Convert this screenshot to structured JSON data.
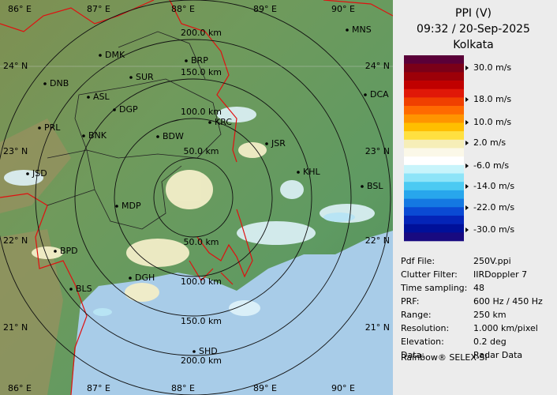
{
  "header": {
    "title": "PPI (V)",
    "datetime": "09:32 / 20-Sep-2025",
    "site": "Kolkata"
  },
  "legend": {
    "labels": [
      "30.0 m/s",
      "18.0 m/s",
      "10.0 m/s",
      "2.0 m/s",
      "-6.0 m/s",
      "-14.0 m/s",
      "-22.0 m/s",
      "-30.0 m/s"
    ]
  },
  "info": {
    "rows": [
      [
        "Pdf File:",
        "250V.ppi"
      ],
      [
        "Clutter Filter:",
        "IIRDoppler 7"
      ],
      [
        "Time sampling:",
        "48"
      ],
      [
        "PRF:",
        "600 Hz / 450 Hz"
      ],
      [
        "Range:",
        "250 km"
      ],
      [
        "Resolution:",
        "1.000 km/pixel"
      ],
      [
        "Elevation:",
        "0.2 deg"
      ],
      [
        "Data:",
        "Radar Data"
      ]
    ]
  },
  "footer": "Rainbow® SELEX-SI",
  "map": {
    "lon_labels": [
      "86° E",
      "87° E",
      "88° E",
      "89° E",
      "90° E"
    ],
    "lat_labels": [
      "24° N",
      "23° N",
      "22° N",
      "21° N"
    ],
    "range_labels_north": [
      "200.0 km",
      "150.0 km",
      "100.0 km",
      "50.0 km"
    ],
    "range_labels_south": [
      "50.0 km",
      "100.0 km",
      "150.0 km",
      "200.0 km"
    ],
    "cities": [
      "MNS",
      "DMK",
      "BRP",
      "DNB",
      "SUR",
      "DCA",
      "ASL",
      "DGP",
      "PRL",
      "KRC",
      "BNK",
      "BDW",
      "JSR",
      "KHL",
      "JSD",
      "BSL",
      "MDP",
      "BPD",
      "DGH",
      "BLS",
      "SHD"
    ]
  }
}
